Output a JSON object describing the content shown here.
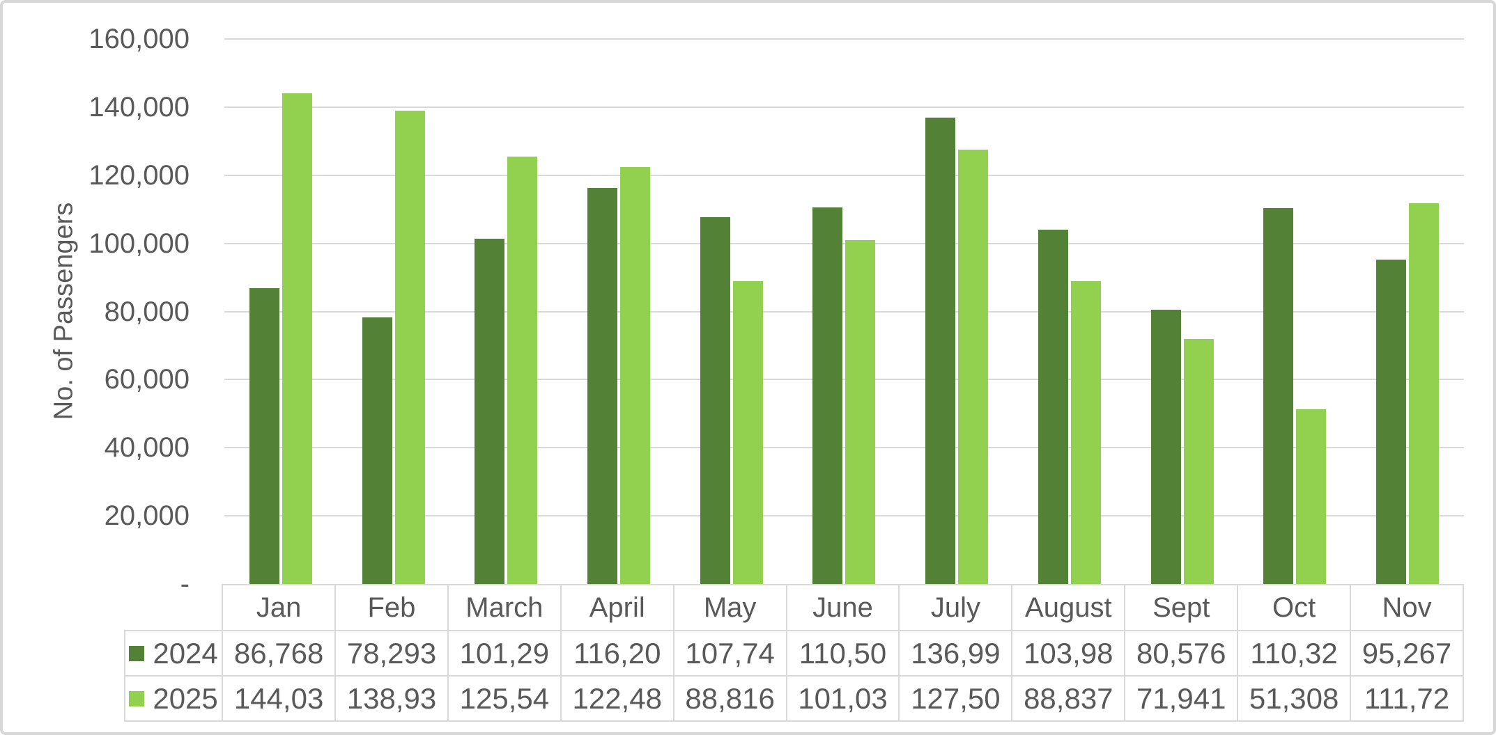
{
  "chart_data": {
    "type": "bar",
    "title": "",
    "xlabel": "",
    "ylabel": "No. of Passengers",
    "categories": [
      "Jan",
      "Feb",
      "March",
      "April",
      "May",
      "June",
      "July",
      "August",
      "Sept",
      "Oct",
      "Nov"
    ],
    "series": [
      {
        "name": "2024",
        "color": "#538135",
        "values": [
          86768,
          78293,
          101290,
          116200,
          107740,
          110500,
          136990,
          103980,
          80576,
          110320,
          95267
        ],
        "display": [
          "86,768",
          "78,293",
          "101,29",
          "116,20",
          "107,74",
          "110,50",
          "136,99",
          "103,98",
          "80,576",
          "110,32",
          "95,267"
        ]
      },
      {
        "name": "2025",
        "color": "#92D050",
        "values": [
          144030,
          138930,
          125540,
          122480,
          88816,
          101030,
          127500,
          88837,
          71941,
          51308,
          111720
        ],
        "display": [
          "144,03",
          "138,93",
          "125,54",
          "122,48",
          "88,816",
          "101,03",
          "127,50",
          "88,837",
          "71,941",
          "51,308",
          "111,72"
        ]
      }
    ],
    "ylim": [
      0,
      160000
    ],
    "yticks": {
      "values": [
        160000,
        140000,
        120000,
        100000,
        80000,
        60000,
        40000,
        20000,
        0
      ],
      "labels": [
        "160,000",
        "140,000",
        "120,000",
        "100,000",
        "80,000",
        "60,000",
        "40,000",
        "20,000",
        "-"
      ]
    },
    "grid": true,
    "legend_position": "data-table-left",
    "colors": {
      "grid": "#D9D9D9",
      "axis_text": "#595959",
      "table_border": "#D9D9D9",
      "frame_border": "#D7D7D7"
    }
  }
}
